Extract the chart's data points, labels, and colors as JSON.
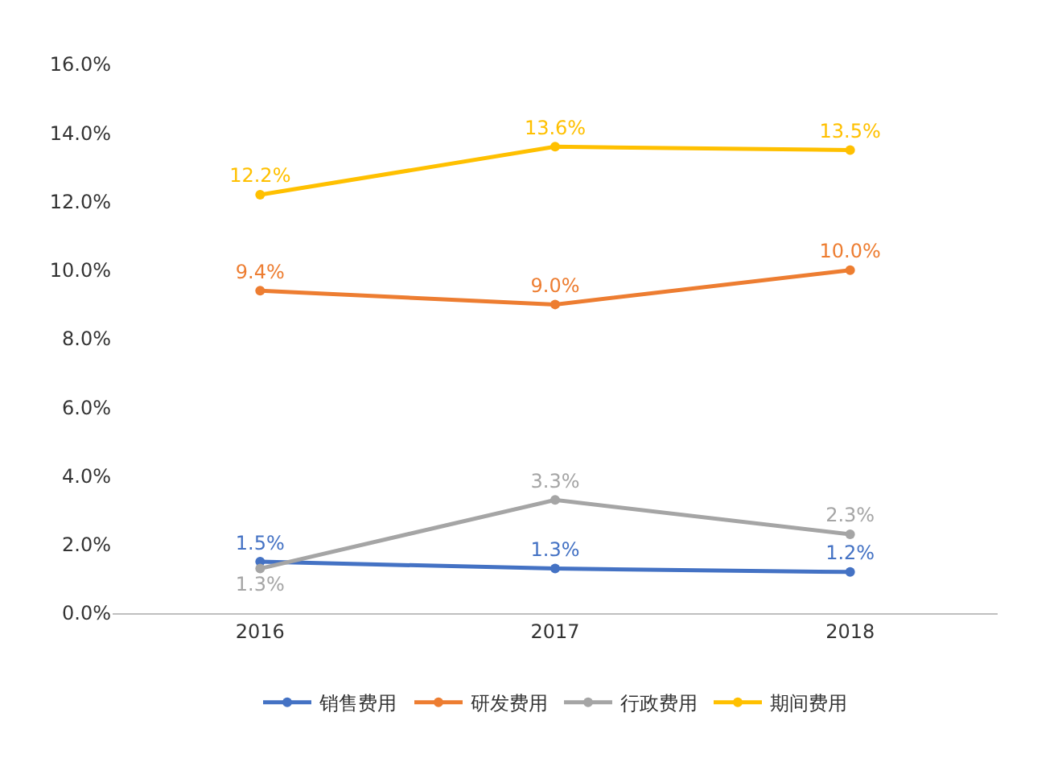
{
  "chart_data": {
    "type": "line",
    "categories": [
      "2016",
      "2017",
      "2018"
    ],
    "series": [
      {
        "name": "销售费用",
        "color": "#4472c4",
        "values": [
          1.5,
          1.3,
          1.2
        ],
        "value_labels": [
          "1.5%",
          "1.3%",
          "1.2%"
        ]
      },
      {
        "name": "研发费用",
        "color": "#ed7d31",
        "values": [
          9.4,
          9.0,
          10.0
        ],
        "value_labels": [
          "9.4%",
          "9.0%",
          "10.0%"
        ]
      },
      {
        "name": "行政费用",
        "color": "#a5a5a5",
        "values": [
          1.3,
          3.3,
          2.3
        ],
        "value_labels": [
          "1.3%",
          "3.3%",
          "2.3%"
        ]
      },
      {
        "name": "期间费用",
        "color": "#ffc000",
        "values": [
          12.2,
          13.6,
          13.5
        ],
        "value_labels": [
          "12.2%",
          "13.6%",
          "13.5%"
        ]
      }
    ],
    "ylim": [
      0,
      16
    ],
    "yticks": [
      {
        "value": 0,
        "label": "0.0%"
      },
      {
        "value": 2,
        "label": "2.0%"
      },
      {
        "value": 4,
        "label": "4.0%"
      },
      {
        "value": 6,
        "label": "6.0%"
      },
      {
        "value": 8,
        "label": "8.0%"
      },
      {
        "value": 10,
        "label": "10.0%"
      },
      {
        "value": 12,
        "label": "12.0%"
      },
      {
        "value": 14,
        "label": "14.0%"
      },
      {
        "value": 16,
        "label": "16.0%"
      }
    ],
    "grid": false,
    "legend": "bottom",
    "marker": "circle",
    "line_style": "solid"
  }
}
